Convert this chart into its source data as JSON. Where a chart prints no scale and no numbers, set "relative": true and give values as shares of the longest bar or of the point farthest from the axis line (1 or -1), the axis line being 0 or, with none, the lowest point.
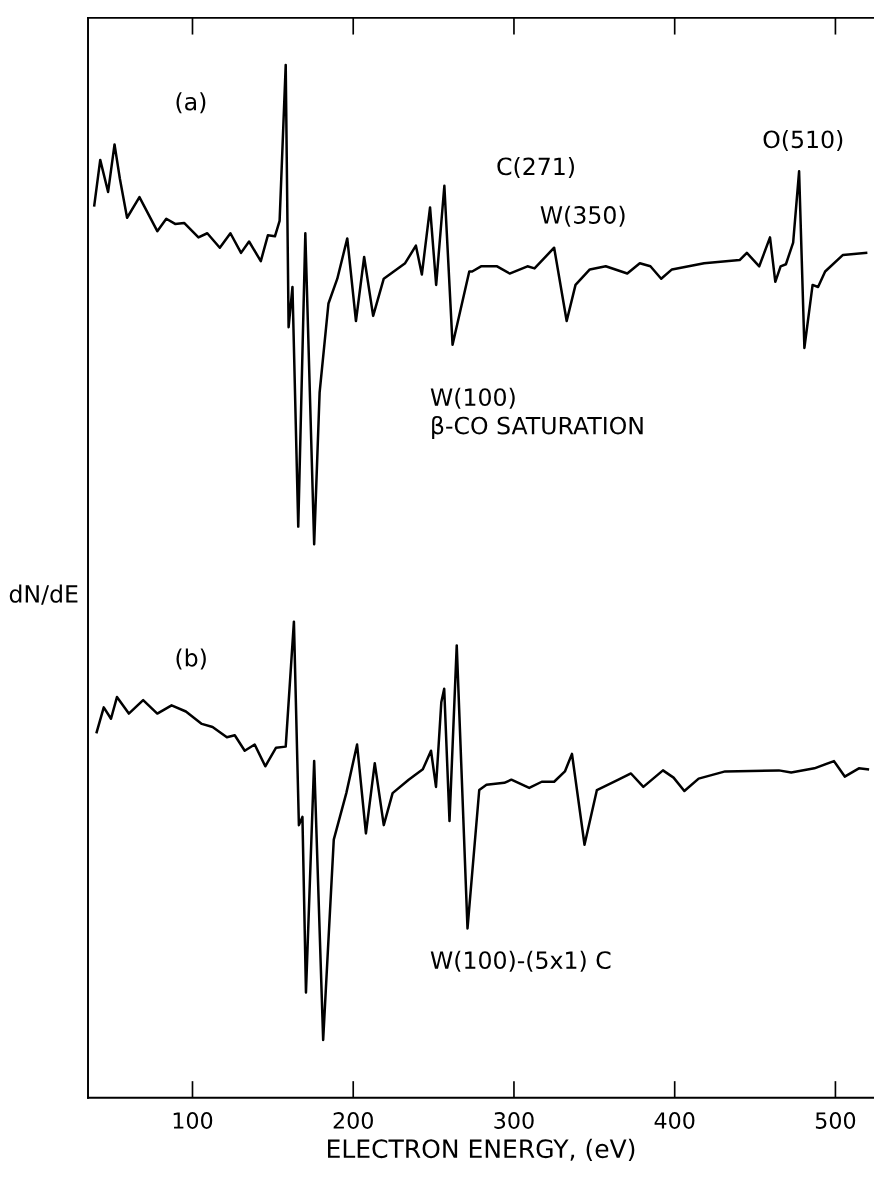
{
  "chart_data": {
    "type": "line",
    "relative": true,
    "xlabel": "ELECTRON ENERGY, (eV)",
    "ylabel": "dN/dE",
    "xlim": [
      35,
      524
    ],
    "xticks": [
      100,
      200,
      300,
      400,
      500
    ],
    "tick_labels": "x",
    "grid": false,
    "line_style": "solid",
    "marker": "none",
    "annotations": [
      "(a)",
      "C(271)",
      "W(350)",
      "O(510)",
      "W(100)\nβ-CO SATURATION",
      "(b)",
      "W(100)-(5x1) C"
    ],
    "series": [
      {
        "color": "#000000",
        "x": [
          38.9,
          42.6,
          47.5,
          51.5,
          54.8,
          59.3,
          67.0,
          78.1,
          83.7,
          89.2,
          94.8,
          103.7,
          109.2,
          117.0,
          123.6,
          130.2,
          135.2,
          142.5,
          146.9,
          151.3,
          154.2,
          158.0,
          159.8,
          162.2,
          165.8,
          170.2,
          175.7,
          179.1,
          184.6,
          190.1,
          196.3,
          201.7,
          206.8,
          212.4,
          219.0,
          232.3,
          239.0,
          242.7,
          247.8,
          251.6,
          256.7,
          261.8,
          272.2,
          274.0,
          279.5,
          289.5,
          297.3,
          308.4,
          312.8,
          325.0,
          332.8,
          338.3,
          347.2,
          357.1,
          370.5,
          378.3,
          384.9,
          391.6,
          398.3,
          418.3,
          440.4,
          444.9,
          452.6,
          459.3,
          462.6,
          465.9,
          469.2,
          473.7,
          477.4,
          480.7,
          485.8,
          489.2,
          493.6,
          504.7,
          519.1
        ],
        "values": [
          0.864,
          0.908,
          0.877,
          0.923,
          0.89,
          0.852,
          0.872,
          0.839,
          0.851,
          0.846,
          0.847,
          0.833,
          0.837,
          0.823,
          0.837,
          0.818,
          0.829,
          0.81,
          0.835,
          0.834,
          0.849,
          1.0,
          0.746,
          0.785,
          0.553,
          0.837,
          0.536,
          0.683,
          0.769,
          0.793,
          0.832,
          0.752,
          0.814,
          0.757,
          0.793,
          0.808,
          0.825,
          0.797,
          0.862,
          0.787,
          0.883,
          0.729,
          0.8,
          0.8,
          0.805,
          0.805,
          0.798,
          0.805,
          0.803,
          0.823,
          0.752,
          0.787,
          0.802,
          0.805,
          0.798,
          0.808,
          0.805,
          0.793,
          0.802,
          0.808,
          0.811,
          0.818,
          0.805,
          0.833,
          0.79,
          0.805,
          0.807,
          0.828,
          0.897,
          0.726,
          0.787,
          0.785,
          0.8,
          0.816,
          0.818
        ]
      },
      {
        "color": "#000000",
        "x": [
          40.4,
          44.8,
          49.3,
          53.0,
          60.4,
          69.3,
          78.1,
          87.0,
          95.9,
          105.8,
          112.5,
          121.4,
          126.3,
          132.5,
          138.7,
          145.3,
          152.0,
          158.0,
          163.1,
          166.2,
          168.4,
          170.6,
          175.7,
          181.3,
          187.9,
          195.7,
          202.4,
          207.9,
          213.4,
          219.0,
          224.5,
          234.5,
          243.3,
          248.4,
          251.5,
          254.8,
          256.6,
          259.9,
          264.4,
          271.1,
          278.4,
          282.9,
          294.0,
          298.4,
          309.5,
          317.3,
          325.0,
          331.7,
          336.1,
          343.9,
          351.6,
          365.0,
          372.8,
          380.5,
          392.7,
          399.3,
          406.0,
          414.9,
          431.4,
          464.8,
          472.5,
          486.9,
          499.1,
          505.8,
          514.6,
          520.2
        ],
        "values": [
          0.354,
          0.378,
          0.367,
          0.388,
          0.372,
          0.385,
          0.372,
          0.38,
          0.374,
          0.362,
          0.359,
          0.349,
          0.351,
          0.336,
          0.342,
          0.321,
          0.339,
          0.34,
          0.461,
          0.264,
          0.272,
          0.102,
          0.326,
          0.056,
          0.25,
          0.295,
          0.342,
          0.256,
          0.324,
          0.264,
          0.295,
          0.308,
          0.318,
          0.336,
          0.301,
          0.383,
          0.396,
          0.268,
          0.438,
          0.164,
          0.298,
          0.303,
          0.305,
          0.308,
          0.3,
          0.306,
          0.306,
          0.316,
          0.333,
          0.245,
          0.298,
          0.308,
          0.314,
          0.301,
          0.317,
          0.31,
          0.297,
          0.309,
          0.316,
          0.317,
          0.315,
          0.319,
          0.326,
          0.311,
          0.319,
          0.318
        ]
      }
    ]
  }
}
